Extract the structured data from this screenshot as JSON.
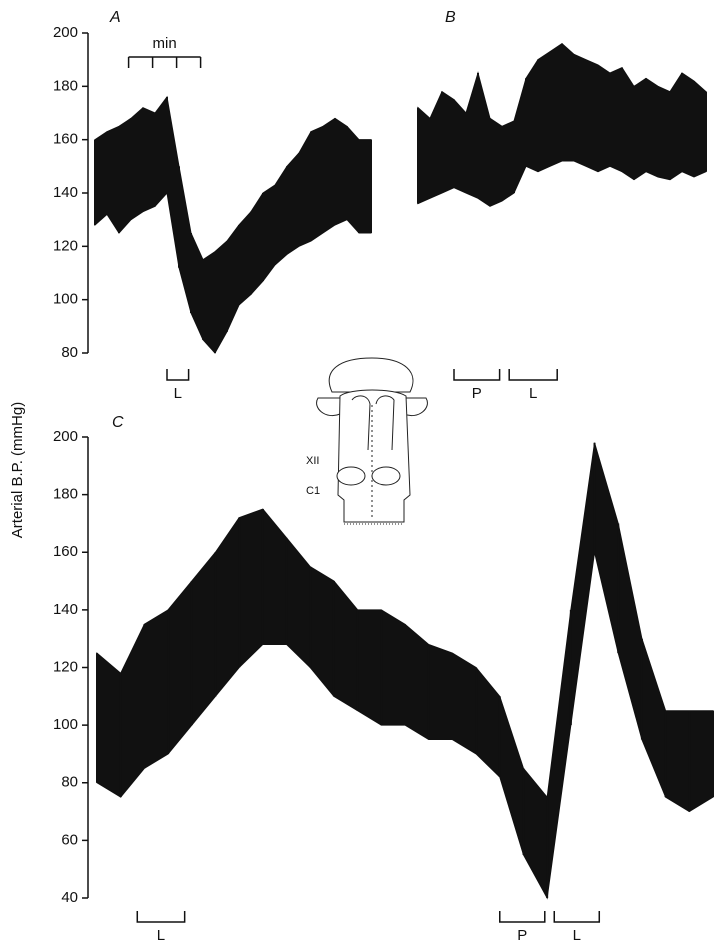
{
  "chart_data": [
    {
      "type": "range",
      "title": "A",
      "y_label": "Arterial B.P. (mmHg)",
      "x": [
        0,
        0.5,
        1,
        1.5,
        2,
        2.5,
        3,
        3.5,
        4,
        4.5,
        5,
        5.5,
        6,
        6.5,
        7,
        7.5,
        8,
        8.5,
        9,
        9.5,
        10,
        10.5,
        11,
        11.5
      ],
      "high": [
        160,
        163,
        165,
        168,
        172,
        170,
        176,
        150,
        125,
        115,
        118,
        122,
        128,
        133,
        140,
        143,
        150,
        155,
        163,
        165,
        168,
        165,
        160,
        160
      ],
      "low": [
        128,
        132,
        125,
        130,
        133,
        135,
        140,
        112,
        95,
        85,
        80,
        88,
        98,
        102,
        107,
        113,
        117,
        120,
        122,
        125,
        128,
        130,
        125,
        125
      ],
      "color": "#111111",
      "xlim": [
        0,
        11.5
      ],
      "ylim": [
        80,
        200
      ],
      "yticks": [
        80,
        100,
        120,
        140,
        160,
        180,
        200
      ],
      "scale_bar": {
        "label": "min",
        "ticks": [
          1.4,
          2.4,
          3.4,
          4.4
        ]
      },
      "markers": [
        {
          "label": "L",
          "start": 3.0,
          "end": 3.9
        }
      ]
    },
    {
      "type": "range",
      "title": "B",
      "x": [
        0,
        0.5,
        1,
        1.5,
        2,
        2.5,
        3,
        3.5,
        4,
        4.5,
        5,
        5.5,
        6,
        6.5,
        7,
        7.5,
        8,
        8.5,
        9,
        9.5,
        10,
        10.5,
        11,
        11.5,
        12
      ],
      "high": [
        172,
        168,
        178,
        175,
        170,
        185,
        168,
        165,
        167,
        183,
        190,
        193,
        196,
        192,
        190,
        188,
        185,
        187,
        180,
        183,
        180,
        178,
        185,
        182,
        178
      ],
      "low": [
        136,
        138,
        140,
        142,
        140,
        138,
        135,
        137,
        140,
        150,
        148,
        150,
        152,
        152,
        150,
        148,
        150,
        148,
        145,
        148,
        146,
        145,
        148,
        146,
        148
      ],
      "color": "#111111",
      "xlim": [
        0,
        12
      ],
      "ylim": [
        80,
        200
      ],
      "markers": [
        {
          "label": "P",
          "start": 1.5,
          "end": 3.4
        },
        {
          "label": "L",
          "start": 3.8,
          "end": 5.8
        }
      ]
    },
    {
      "type": "range",
      "title": "C",
      "x": [
        0,
        1,
        2,
        3,
        4,
        5,
        6,
        7,
        8,
        9,
        10,
        11,
        12,
        13,
        14,
        15,
        16,
        17,
        18,
        19,
        20,
        21,
        22,
        23,
        24,
        25,
        26
      ],
      "high": [
        125,
        118,
        135,
        140,
        150,
        160,
        172,
        175,
        165,
        155,
        150,
        140,
        140,
        135,
        128,
        125,
        120,
        110,
        85,
        75,
        140,
        198,
        170,
        130,
        105,
        105,
        105
      ],
      "low": [
        80,
        75,
        85,
        90,
        100,
        110,
        120,
        128,
        128,
        120,
        110,
        105,
        100,
        100,
        95,
        95,
        90,
        82,
        55,
        40,
        100,
        160,
        125,
        95,
        75,
        70,
        75
      ],
      "color": "#111111",
      "xlim": [
        0,
        26
      ],
      "ylim": [
        40,
        200
      ],
      "yticks": [
        40,
        60,
        80,
        100,
        120,
        140,
        160,
        180,
        200
      ],
      "markers": [
        {
          "label": "L",
          "start": 1.7,
          "end": 3.7
        },
        {
          "label": "P",
          "start": 17.0,
          "end": 18.9
        },
        {
          "label": "L",
          "start": 19.3,
          "end": 21.2
        }
      ]
    }
  ],
  "diagram": {
    "labels": [
      "XII",
      "C1"
    ]
  }
}
